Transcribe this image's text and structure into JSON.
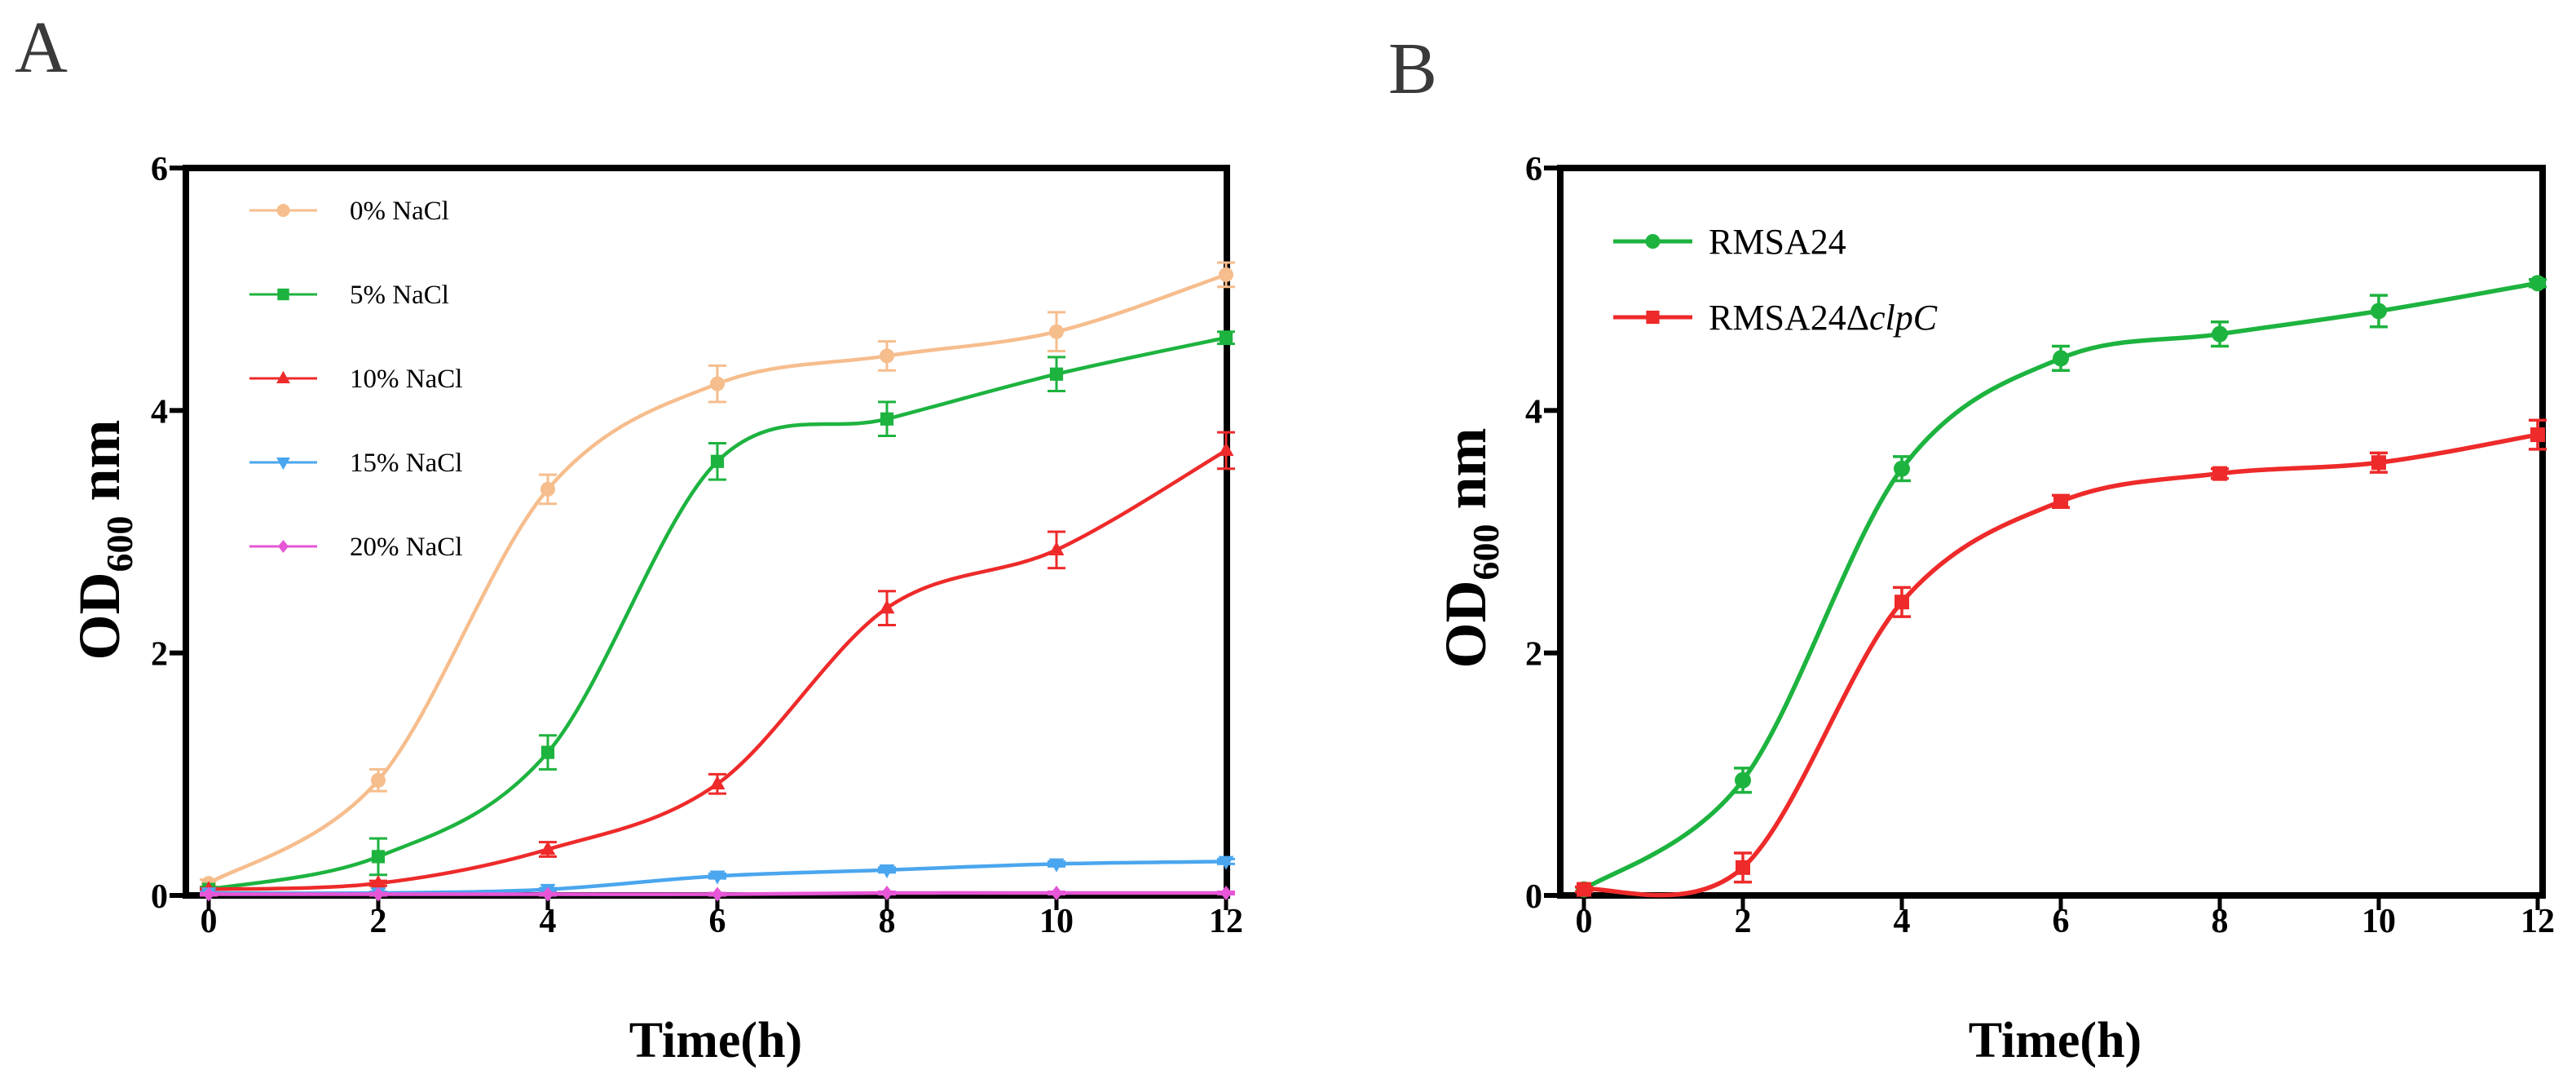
{
  "chart_data": [
    {
      "type": "line",
      "panel_label": "A",
      "xlabel": "Time(h)",
      "ylabel": {
        "text": "OD",
        "subscript": "600",
        "suffix": " nm"
      },
      "xlim": [
        0,
        12
      ],
      "ylim": [
        0,
        6
      ],
      "xticks": [
        0,
        2,
        4,
        6,
        8,
        10,
        12
      ],
      "yticks": [
        0,
        2,
        4,
        6
      ],
      "grid": false,
      "legend_position": "top-left",
      "x": [
        0,
        2,
        4,
        6,
        8,
        10,
        12
      ],
      "series": [
        {
          "name": "0% NaCl",
          "color": "#F6BD8D",
          "marker": "circle",
          "values": [
            0.1,
            0.95,
            3.35,
            4.22,
            4.45,
            4.65,
            5.12
          ],
          "errors": [
            0.03,
            0.09,
            0.12,
            0.15,
            0.12,
            0.16,
            0.1
          ]
        },
        {
          "name": "5% NaCl",
          "color": "#1DB33F",
          "marker": "square",
          "values": [
            0.05,
            0.32,
            1.18,
            3.58,
            3.93,
            4.3,
            4.6
          ],
          "errors": [
            0.02,
            0.15,
            0.14,
            0.15,
            0.14,
            0.14,
            0.05
          ]
        },
        {
          "name": "10% NaCl",
          "color": "#EE2A2A",
          "marker": "triangle-up",
          "values": [
            0.05,
            0.1,
            0.38,
            0.92,
            2.37,
            2.85,
            3.67
          ],
          "errors": [
            0.01,
            0.02,
            0.06,
            0.08,
            0.14,
            0.15,
            0.15
          ]
        },
        {
          "name": "15% NaCl",
          "color": "#4AA6EE",
          "marker": "triangle-down",
          "values": [
            0.02,
            0.02,
            0.05,
            0.16,
            0.21,
            0.26,
            0.28
          ],
          "errors": [
            0.01,
            0.01,
            0.01,
            0.02,
            0.02,
            0.02,
            0.02
          ]
        },
        {
          "name": "20% NaCl",
          "color": "#E656D6",
          "marker": "diamond",
          "values": [
            0.01,
            0.01,
            0.01,
            0.01,
            0.02,
            0.02,
            0.02
          ],
          "errors": [
            0.01,
            0.01,
            0.01,
            0.01,
            0.01,
            0.01,
            0.01
          ]
        }
      ]
    },
    {
      "type": "line",
      "panel_label": "B",
      "xlabel": "Time(h)",
      "ylabel": {
        "text": "OD",
        "subscript": "600",
        "suffix": " nm"
      },
      "xlim": [
        0,
        12
      ],
      "ylim": [
        0,
        6
      ],
      "xticks": [
        0,
        2,
        4,
        6,
        8,
        10,
        12
      ],
      "yticks": [
        0,
        2,
        4,
        6
      ],
      "grid": false,
      "legend_position": "top-left",
      "x": [
        0,
        2,
        4,
        6,
        8,
        10,
        12
      ],
      "series": [
        {
          "name": "RMSA24",
          "color": "#1DB33F",
          "marker": "circle",
          "values": [
            0.05,
            0.95,
            3.52,
            4.43,
            4.63,
            4.82,
            5.05
          ],
          "errors": [
            0.02,
            0.1,
            0.1,
            0.1,
            0.1,
            0.13,
            0.03
          ]
        },
        {
          "name": "RMSA24ΔclpC",
          "italic_part": "clpC",
          "color": "#EE2A2A",
          "marker": "square",
          "values": [
            0.05,
            0.23,
            2.42,
            3.25,
            3.48,
            3.57,
            3.8
          ],
          "errors": [
            0.02,
            0.12,
            0.12,
            0.05,
            0.04,
            0.08,
            0.12
          ]
        }
      ]
    }
  ]
}
